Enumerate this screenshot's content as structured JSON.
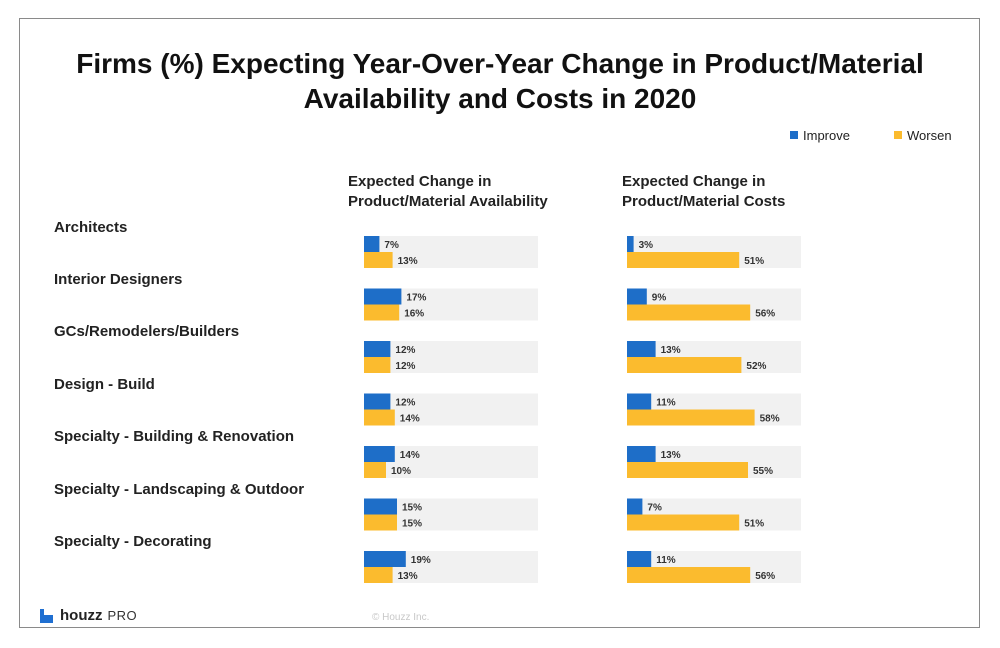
{
  "title_lines": [
    "Firms (%) Expecting Year-Over-Year Change in Product/Material",
    "Availability and Costs in 2020"
  ],
  "legend": [
    {
      "label": "Improve",
      "color": "#1e6ec8"
    },
    {
      "label": "Worsen",
      "color": "#fbbb2e"
    }
  ],
  "columns": [
    {
      "title_lines": [
        "Expected Change in",
        "Product/Material Availability"
      ]
    },
    {
      "title_lines": [
        "Expected Change in",
        "Product/Material Costs"
      ]
    }
  ],
  "footer": {
    "brand": "houzz",
    "brand_suffix": "PRO",
    "copyright": "© Houzz Inc."
  },
  "chart_data": [
    {
      "type": "bar",
      "orientation": "horizontal",
      "title": "Expected Change in Product/Material Availability",
      "categories": [
        "Architects",
        "Interior Designers",
        "GCs/Remodelers/Builders",
        "Design - Build",
        "Specialty - Building & Renovation",
        "Specialty - Landscaping & Outdoor",
        "Specialty - Decorating"
      ],
      "series": [
        {
          "name": "Improve",
          "values": [
            7,
            17,
            12,
            12,
            14,
            15,
            19
          ],
          "color": "#1e6ec8"
        },
        {
          "name": "Worsen",
          "values": [
            13,
            16,
            12,
            14,
            10,
            15,
            13
          ],
          "color": "#fbbb2e"
        }
      ],
      "value_suffix": "%",
      "xlim": [
        0,
        60
      ]
    },
    {
      "type": "bar",
      "orientation": "horizontal",
      "title": "Expected Change in Product/Material Costs",
      "categories": [
        "Architects",
        "Interior Designers",
        "GCs/Remodelers/Builders",
        "Design - Build",
        "Specialty - Building & Renovation",
        "Specialty - Landscaping & Outdoor",
        "Specialty - Decorating"
      ],
      "series": [
        {
          "name": "Improve",
          "values": [
            3,
            9,
            13,
            11,
            13,
            7,
            11
          ],
          "color": "#1e6ec8"
        },
        {
          "name": "Worsen",
          "values": [
            51,
            56,
            52,
            58,
            55,
            51,
            56
          ],
          "color": "#fbbb2e"
        }
      ],
      "value_suffix": "%",
      "xlim": [
        0,
        60
      ]
    }
  ]
}
